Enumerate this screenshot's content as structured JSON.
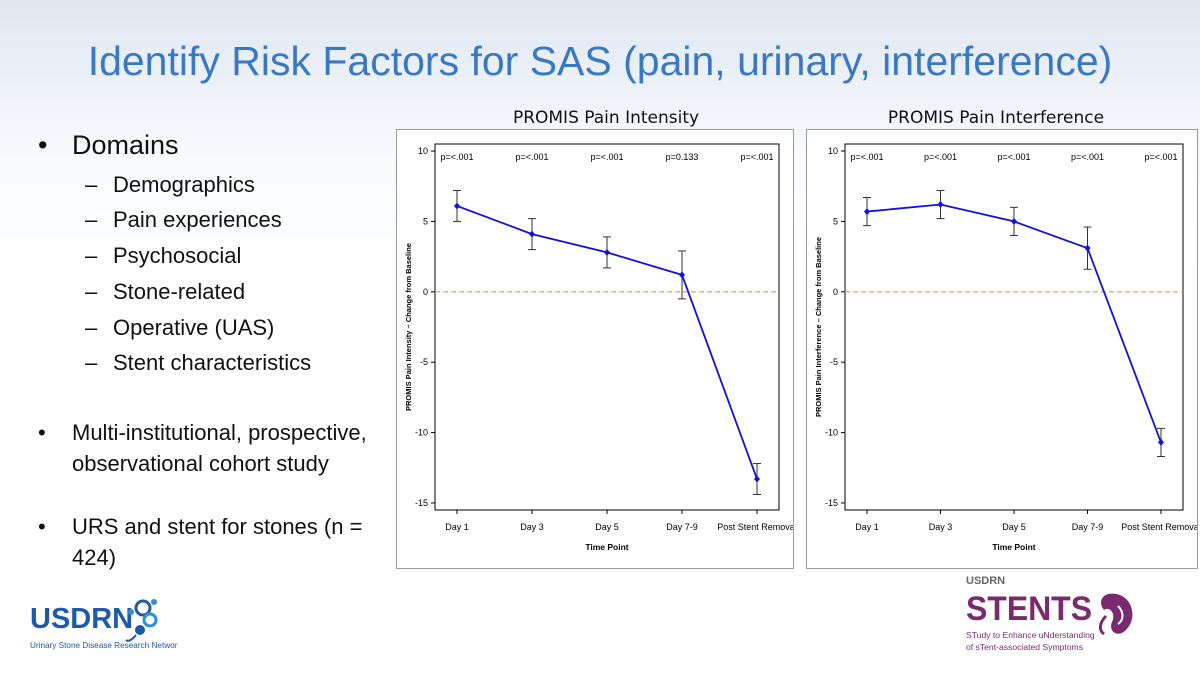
{
  "slide": {
    "title": "Identify Risk Factors for SAS (pain, urinary, interference)",
    "bullets": {
      "domains": "Domains",
      "subitems": [
        "Demographics",
        "Pain experiences",
        "Psychosocial",
        "Stone-related",
        "Operative (UAS)",
        "Stent characteristics"
      ],
      "study": "Multi-institutional, prospective, observational cohort study",
      "urs": "URS and stent for stones (n = 424)"
    },
    "logos": {
      "left_name": "USDRN",
      "left_sub": "Urinary Stone Disease Research Network",
      "right_top": "USDRN",
      "right_name": "STENTS",
      "right_sub1": "STudy to Enhance uNderstanding",
      "right_sub2": "of sTent-associated Symptoms"
    },
    "colors": {
      "title": "#3a78c2",
      "series": "#1010e0",
      "reference": "#e89060",
      "logo_blue": "#1e5aa8",
      "logo_purple": "#7a2a6e"
    }
  },
  "chart_data": [
    {
      "type": "line",
      "title": "PROMIS Pain Intensity",
      "xlabel": "Time Point",
      "ylabel": "PROMIS Pain Intensity – Change from Baseline",
      "categories": [
        "Day 1",
        "Day 3",
        "Day 5",
        "Day 7-9",
        "Post Stent Removal"
      ],
      "series": [
        {
          "values": [
            6.1,
            4.1,
            2.8,
            1.2,
            -13.3
          ],
          "lower": [
            5.0,
            3.0,
            1.7,
            -0.5,
            -14.4
          ],
          "upper": [
            7.2,
            5.2,
            3.9,
            2.9,
            -12.2
          ]
        }
      ],
      "p_values": [
        "p=<.001",
        "p=<.001",
        "p=<.001",
        "p=0.133",
        "p=<.001"
      ],
      "ylim": [
        -15.5,
        10.5
      ],
      "yticks": [
        10,
        5,
        0,
        -5,
        -10,
        -15
      ],
      "reference_line": 0
    },
    {
      "type": "line",
      "title": "PROMIS Pain Interference",
      "xlabel": "Time Point",
      "ylabel": "PROMIS Pain Interference – Change from Baseline",
      "categories": [
        "Day 1",
        "Day 3",
        "Day 5",
        "Day 7-9",
        "Post Stent Removal"
      ],
      "series": [
        {
          "values": [
            5.7,
            6.2,
            5.0,
            3.1,
            -10.7
          ],
          "lower": [
            4.7,
            5.2,
            4.0,
            1.6,
            -11.7
          ],
          "upper": [
            6.7,
            7.2,
            6.0,
            4.6,
            -9.7
          ]
        }
      ],
      "p_values": [
        "p=<.001",
        "p=<.001",
        "p=<.001",
        "p=<.001",
        "p=<.001"
      ],
      "ylim": [
        -15.5,
        10.5
      ],
      "yticks": [
        10,
        5,
        0,
        -5,
        -10,
        -15
      ],
      "reference_line": 0
    }
  ]
}
